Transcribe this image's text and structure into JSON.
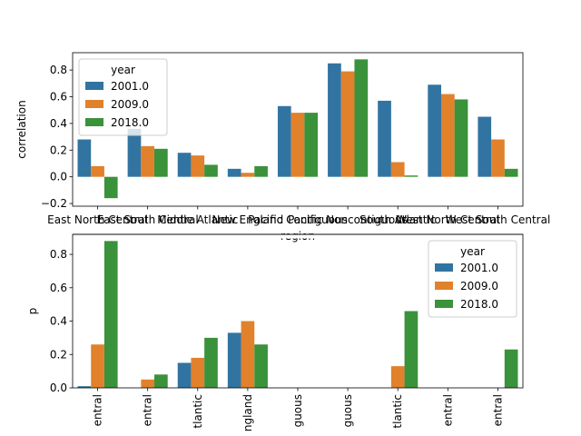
{
  "chart_data": [
    {
      "type": "bar",
      "xlabel": "region",
      "ylabel": "correlation",
      "ylim": [
        -0.22,
        0.93
      ],
      "yticks": [
        -0.2,
        0.0,
        0.2,
        0.4,
        0.6,
        0.8
      ],
      "ytick_labels": [
        "−0.2",
        "0.0",
        "0.2",
        "0.4",
        "0.6",
        "0.8"
      ],
      "categories": [
        "East North Central",
        "East South Central",
        "Middle Atlantic",
        "New England",
        "Pacific Contiguous",
        "Pacific Noncontiguous",
        "South Atlantic",
        "West North Central",
        "West South Central"
      ],
      "series": [
        {
          "name": "2001.0",
          "color": "#3274a1",
          "values": [
            0.28,
            0.36,
            0.18,
            0.06,
            0.53,
            0.85,
            0.57,
            0.69,
            0.45
          ]
        },
        {
          "name": "2009.0",
          "color": "#e1812c",
          "values": [
            0.08,
            0.23,
            0.16,
            0.03,
            0.48,
            0.79,
            0.11,
            0.62,
            0.28
          ]
        },
        {
          "name": "2018.0",
          "color": "#3a923a",
          "values": [
            -0.16,
            0.21,
            0.09,
            0.08,
            0.48,
            0.88,
            0.01,
            0.58,
            0.06
          ]
        }
      ],
      "legend": {
        "title": "year",
        "placement": "upper-left",
        "labels": [
          "2001.0",
          "2009.0",
          "2018.0"
        ]
      },
      "grid": false
    },
    {
      "type": "bar",
      "xlabel": "",
      "ylabel": "p",
      "ylim": [
        0.0,
        0.92
      ],
      "yticks": [
        0.0,
        0.2,
        0.4,
        0.6,
        0.8
      ],
      "ytick_labels": [
        "0.0",
        "0.2",
        "0.4",
        "0.6",
        "0.8"
      ],
      "tick_labels_visible": [
        "entral",
        "entral",
        "tlantic",
        "ngland",
        "guous",
        "guous",
        "tlantic",
        "entral",
        "entral"
      ],
      "series": [
        {
          "name": "2001.0",
          "color": "#3274a1",
          "values": [
            0.01,
            0.0,
            0.15,
            0.33,
            0.0,
            0.0,
            0.0,
            0.0,
            0.0
          ]
        },
        {
          "name": "2009.0",
          "color": "#e1812c",
          "values": [
            0.26,
            0.05,
            0.18,
            0.4,
            0.0,
            0.0,
            0.13,
            0.0,
            0.0
          ]
        },
        {
          "name": "2018.0",
          "color": "#3a923a",
          "values": [
            0.88,
            0.08,
            0.3,
            0.26,
            0.0,
            0.0,
            0.46,
            0.0,
            0.23
          ]
        }
      ],
      "legend": {
        "title": "year",
        "placement": "upper-right",
        "labels": [
          "2001.0",
          "2009.0",
          "2018.0"
        ]
      },
      "grid": false
    }
  ]
}
